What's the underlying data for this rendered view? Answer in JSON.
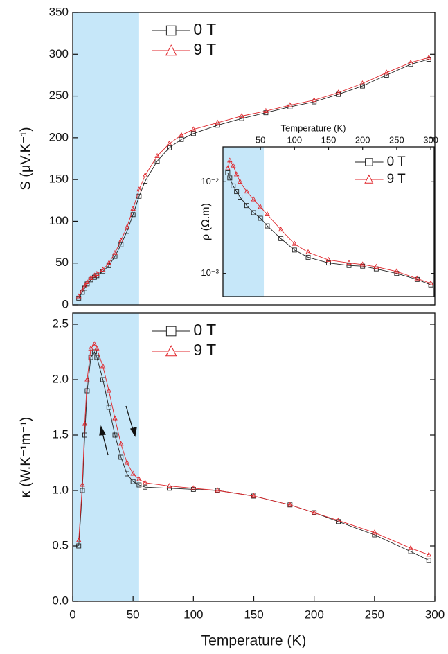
{
  "chart_data": [
    {
      "type": "line",
      "y_label": "S (μV.K⁻¹)",
      "xlim": [
        0,
        300
      ],
      "ylim": [
        0,
        350
      ],
      "yticks": [
        0,
        50,
        100,
        150,
        200,
        250,
        300,
        350
      ],
      "highlight": {
        "xrange": [
          0,
          55
        ],
        "color": "#c6e7f9"
      },
      "legend": "upper left",
      "x": [
        5,
        8,
        10,
        12,
        15,
        18,
        20,
        25,
        30,
        35,
        40,
        45,
        50,
        55,
        60,
        70,
        80,
        90,
        100,
        120,
        140,
        160,
        180,
        200,
        220,
        240,
        260,
        280,
        295
      ],
      "series": [
        {
          "name": "0 T",
          "color": "#222222",
          "marker": "square",
          "values": [
            8,
            15,
            20,
            25,
            30,
            33,
            35,
            40,
            47,
            58,
            72,
            88,
            108,
            130,
            148,
            172,
            188,
            198,
            205,
            215,
            223,
            230,
            237,
            243,
            252,
            262,
            275,
            288,
            294
          ]
        },
        {
          "name": "9 T",
          "color": "#e0262b",
          "marker": "triangle",
          "values": [
            10,
            17,
            22,
            27,
            32,
            35,
            37,
            42,
            50,
            62,
            77,
            93,
            115,
            138,
            155,
            178,
            193,
            203,
            210,
            218,
            226,
            232,
            239,
            245,
            254,
            265,
            278,
            290,
            296
          ]
        }
      ]
    },
    {
      "type": "line",
      "x_label": "Temperature (K)",
      "y_label": "ρ (Ω.m)",
      "yscale": "log",
      "xlim": [
        -5,
        305
      ],
      "xticks": [
        50,
        100,
        150,
        200,
        250,
        300
      ],
      "ylim": [
        0.00056,
        0.024
      ],
      "yticks": [
        {
          "value": 0.001,
          "label": "10⁻³"
        },
        {
          "value": 0.01,
          "label": "10⁻²"
        }
      ],
      "highlight": {
        "xrange": [
          -5,
          55
        ],
        "color": "#c6e7f9"
      },
      "legend": "upper right",
      "x": [
        2,
        5,
        10,
        15,
        20,
        30,
        40,
        50,
        60,
        80,
        100,
        120,
        150,
        180,
        200,
        220,
        250,
        280,
        300
      ],
      "series": [
        {
          "name": "0 T",
          "color": "#222222",
          "marker": "square",
          "values": [
            0.0125,
            0.011,
            0.009,
            0.0078,
            0.0068,
            0.0055,
            0.0046,
            0.004,
            0.0033,
            0.0024,
            0.0018,
            0.0015,
            0.0013,
            0.00122,
            0.0012,
            0.00112,
            0.001,
            0.00086,
            0.00075
          ]
        },
        {
          "name": "9 T",
          "color": "#e0262b",
          "marker": "triangle",
          "values": [
            0.014,
            0.017,
            0.015,
            0.012,
            0.01,
            0.0078,
            0.0064,
            0.0053,
            0.0044,
            0.003,
            0.0021,
            0.0017,
            0.0014,
            0.0013,
            0.00125,
            0.00118,
            0.00105,
            0.00088,
            0.00078
          ]
        }
      ]
    },
    {
      "type": "line",
      "x_label": "Temperature (K)",
      "y_label": "κ (W.K⁻¹m⁻¹)",
      "xlim": [
        0,
        300
      ],
      "xticks": [
        0,
        50,
        100,
        150,
        200,
        250,
        300
      ],
      "ylim": [
        0,
        2.6
      ],
      "yticks": [
        {
          "value": 0,
          "label": "0.0"
        },
        0.5,
        {
          "value": 1,
          "label": "1.0"
        },
        1.5,
        {
          "value": 2,
          "label": "2.0"
        },
        2.5
      ],
      "highlight": {
        "xrange": [
          0,
          55
        ],
        "color": "#c6e7f9"
      },
      "legend": "upper left",
      "x": [
        5,
        8,
        10,
        12,
        15,
        18,
        20,
        25,
        30,
        35,
        40,
        45,
        50,
        55,
        60,
        80,
        100,
        120,
        150,
        180,
        200,
        220,
        250,
        280,
        295
      ],
      "series": [
        {
          "name": "0 T",
          "color": "#222222",
          "marker": "square",
          "values": [
            0.5,
            1.0,
            1.5,
            1.9,
            2.2,
            2.25,
            2.2,
            2.0,
            1.75,
            1.5,
            1.3,
            1.15,
            1.08,
            1.05,
            1.03,
            1.02,
            1.01,
            1.0,
            0.95,
            0.87,
            0.8,
            0.72,
            0.6,
            0.45,
            0.37
          ]
        },
        {
          "name": "9 T",
          "color": "#e0262b",
          "marker": "triangle",
          "values": [
            0.55,
            1.05,
            1.6,
            2.0,
            2.28,
            2.32,
            2.28,
            2.12,
            1.9,
            1.65,
            1.42,
            1.25,
            1.15,
            1.1,
            1.07,
            1.04,
            1.02,
            1.0,
            0.95,
            0.87,
            0.8,
            0.73,
            0.62,
            0.48,
            0.42
          ]
        }
      ]
    }
  ]
}
